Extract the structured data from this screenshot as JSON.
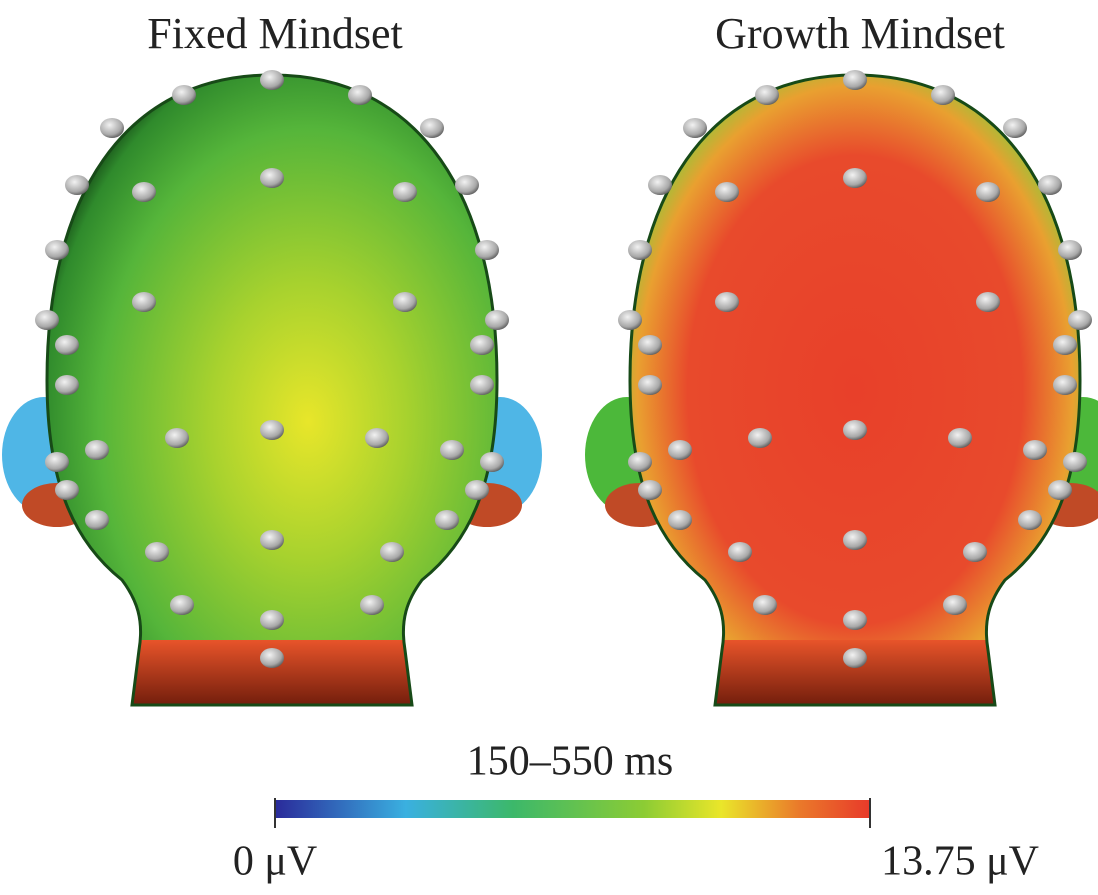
{
  "panels": [
    {
      "title": "Fixed Mindset"
    },
    {
      "title": "Growth Mindset"
    }
  ],
  "colorbar": {
    "title": "150–550 ms",
    "min_label": "0 μV",
    "max_label": "13.75 μV"
  }
}
